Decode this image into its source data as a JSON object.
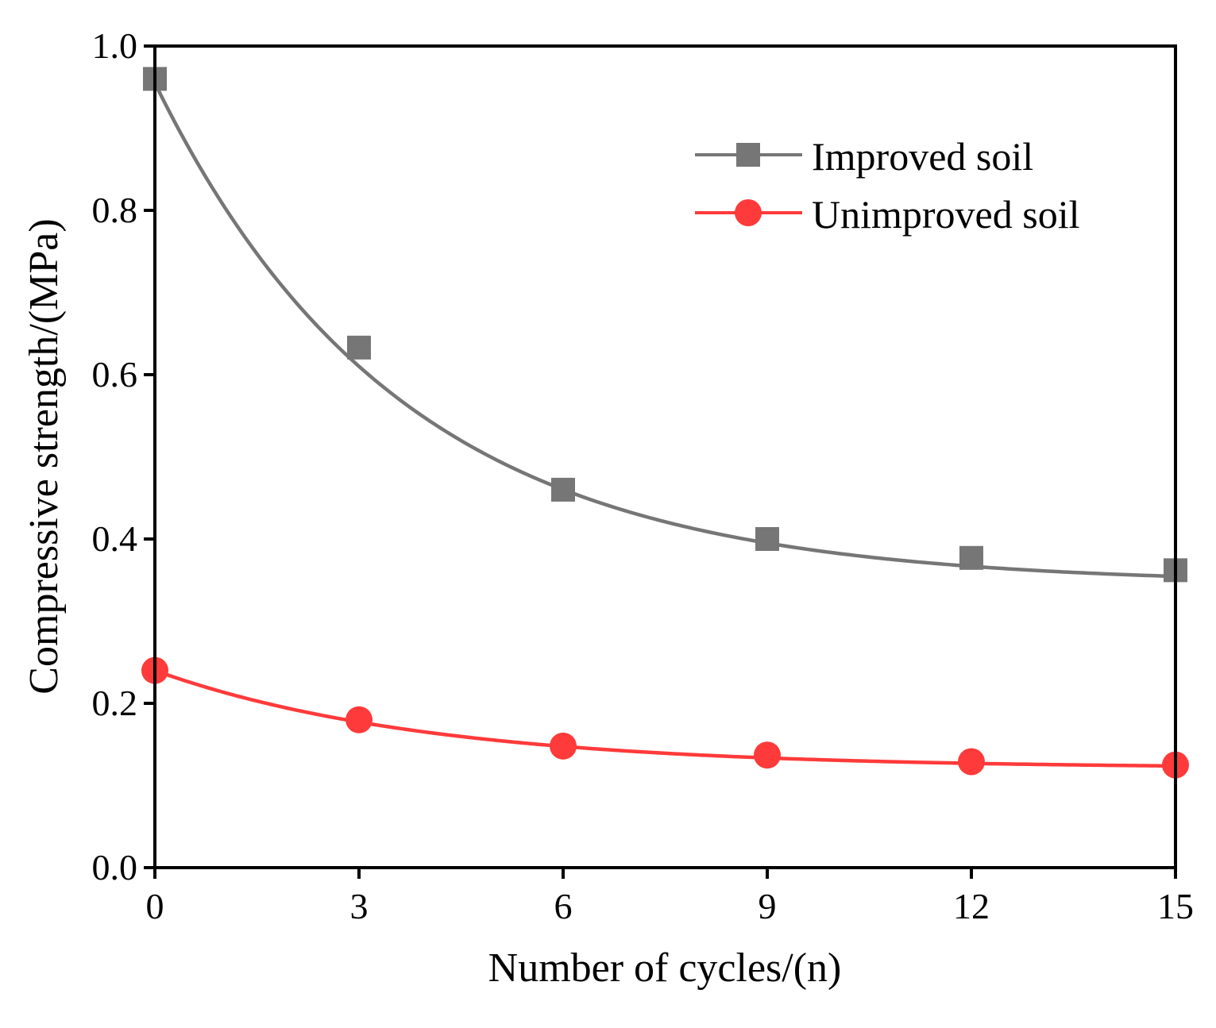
{
  "chart_data": {
    "type": "line",
    "title": "",
    "xlabel": "Number of cycles/(n)",
    "ylabel": "Compressive strength/(MPa)",
    "xlim": [
      0,
      15
    ],
    "ylim": [
      0.0,
      1.0
    ],
    "xticks": [
      0,
      3,
      6,
      9,
      12,
      15
    ],
    "xtick_labels": [
      "0",
      "3",
      "6",
      "9",
      "12",
      "15"
    ],
    "yticks": [
      0.0,
      0.2,
      0.4,
      0.6,
      0.8,
      1.0
    ],
    "ytick_labels": [
      "0.0",
      "0.2",
      "0.4",
      "0.6",
      "0.8",
      "1.0"
    ],
    "grid": false,
    "legend_position": "top-right",
    "x": [
      0,
      3,
      6,
      9,
      12,
      15
    ],
    "series": [
      {
        "name": "Improved soil",
        "marker": "square",
        "color": "#767676",
        "values": [
          0.96,
          0.633,
          0.46,
          0.4,
          0.377,
          0.362
        ],
        "fit": {
          "model": "exponential",
          "y0": 0.345,
          "amplitude": 0.61,
          "decay_n": 3.6
        }
      },
      {
        "name": "Unimproved soil",
        "marker": "circle",
        "color": "#ff3a3a",
        "values": [
          0.24,
          0.18,
          0.148,
          0.137,
          0.129,
          0.125
        ],
        "fit": {
          "model": "exponential",
          "y0": 0.121,
          "amplitude": 0.119,
          "decay_n": 4.0
        }
      }
    ]
  }
}
